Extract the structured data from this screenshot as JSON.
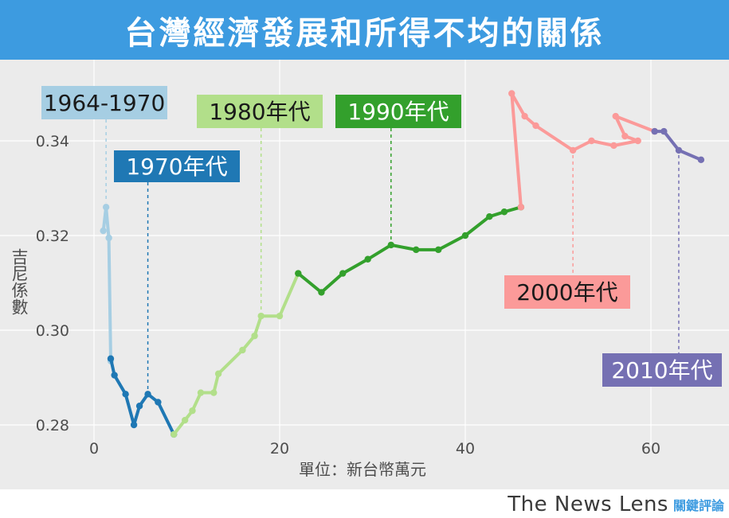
{
  "header": {
    "title": "台灣經濟發展和所得不均的關係"
  },
  "brand": {
    "name": "The News Lens",
    "name_cn": "關鍵評論"
  },
  "chart_data": {
    "type": "line",
    "xlabel": "單位：新台幣萬元",
    "ylabel": "吉尼係數",
    "xlim": [
      -1,
      68
    ],
    "ylim": [
      0.2765,
      0.3565
    ],
    "xticks": [
      0,
      20,
      40,
      60
    ],
    "yticks": [
      0.28,
      0.3,
      0.32,
      0.34
    ],
    "ytick_labels": [
      "0.28",
      "0.30",
      "0.32",
      "0.34"
    ],
    "grid": true,
    "series": [
      {
        "name": "1964-1970",
        "color": "#a6cee3",
        "x": [
          1.0,
          1.3,
          1.6,
          1.8
        ],
        "y": [
          0.321,
          0.326,
          0.3195,
          0.2935
        ],
        "label_anchor_x": 1.3
      },
      {
        "name": "1970年代",
        "color": "#1f78b4",
        "x": [
          1.8,
          2.2,
          3.4,
          4.3,
          4.9,
          5.8,
          6.9,
          8.6
        ],
        "y": [
          0.294,
          0.2905,
          0.2865,
          0.28,
          0.284,
          0.2865,
          0.2848,
          0.278
        ],
        "label_anchor_x": 5.8
      },
      {
        "name": "1980年代",
        "color": "#b2df8a",
        "x": [
          8.6,
          9.8,
          10.6,
          11.5,
          12.9,
          13.4,
          16.0,
          17.3,
          18.0,
          20.0,
          22.0
        ],
        "y": [
          0.278,
          0.281,
          0.283,
          0.2868,
          0.2868,
          0.2908,
          0.2958,
          0.2988,
          0.303,
          0.303,
          0.312
        ],
        "label_anchor_x": 18.0
      },
      {
        "name": "1990年代",
        "color": "#33a02c",
        "x": [
          22.0,
          24.5,
          26.8,
          29.5,
          32.0,
          34.7,
          37.1,
          40.0,
          42.6,
          44.2,
          46.0
        ],
        "y": [
          0.312,
          0.308,
          0.312,
          0.315,
          0.318,
          0.317,
          0.317,
          0.32,
          0.324,
          0.325,
          0.326
        ],
        "label_anchor_x": 32.0
      },
      {
        "name": "2000年代",
        "color": "#fb9a99",
        "x": [
          46.0,
          45.0,
          46.4,
          47.6,
          51.6,
          53.6,
          56.0,
          58.6,
          57.2,
          56.2,
          60.4
        ],
        "y": [
          0.326,
          0.35,
          0.3452,
          0.3432,
          0.338,
          0.34,
          0.339,
          0.34,
          0.341,
          0.3452,
          0.342
        ],
        "label_anchor_x": 51.6
      },
      {
        "name": "2010年代",
        "color": "#7570b3",
        "x": [
          60.4,
          61.4,
          63.0,
          65.4
        ],
        "y": [
          0.342,
          0.342,
          0.338,
          0.336
        ],
        "label_anchor_x": 63.0
      }
    ]
  }
}
